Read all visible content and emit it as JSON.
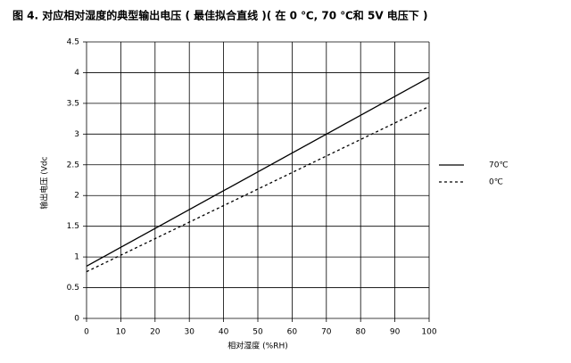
{
  "chart_data": {
    "type": "line",
    "title": "图 4. 对应相对湿度的典型输出电压 ( 最佳拟合直线 )( 在 0 ℃, 70 ℃和 5V 电压下 )",
    "x_label": "相对湿度 (%RH)",
    "y_label": "输出电压 (Vdc",
    "x": [
      0,
      100
    ],
    "series": [
      {
        "name": "70℃",
        "color": "#000000",
        "line_style": "solid",
        "values": [
          0.85,
          3.92
        ]
      },
      {
        "name": "0℃",
        "color": "#000000",
        "line_style": "dotted",
        "values": [
          0.76,
          3.45
        ]
      }
    ],
    "xlim": [
      0,
      100
    ],
    "xticks": [
      0,
      10,
      20,
      30,
      40,
      50,
      60,
      70,
      80,
      90,
      100
    ],
    "ylim": [
      0,
      4.5
    ],
    "yticks": [
      0,
      0.5,
      1,
      1.5,
      2,
      2.5,
      3,
      3.5,
      4,
      4.5
    ],
    "grid": true,
    "legend": "right"
  }
}
